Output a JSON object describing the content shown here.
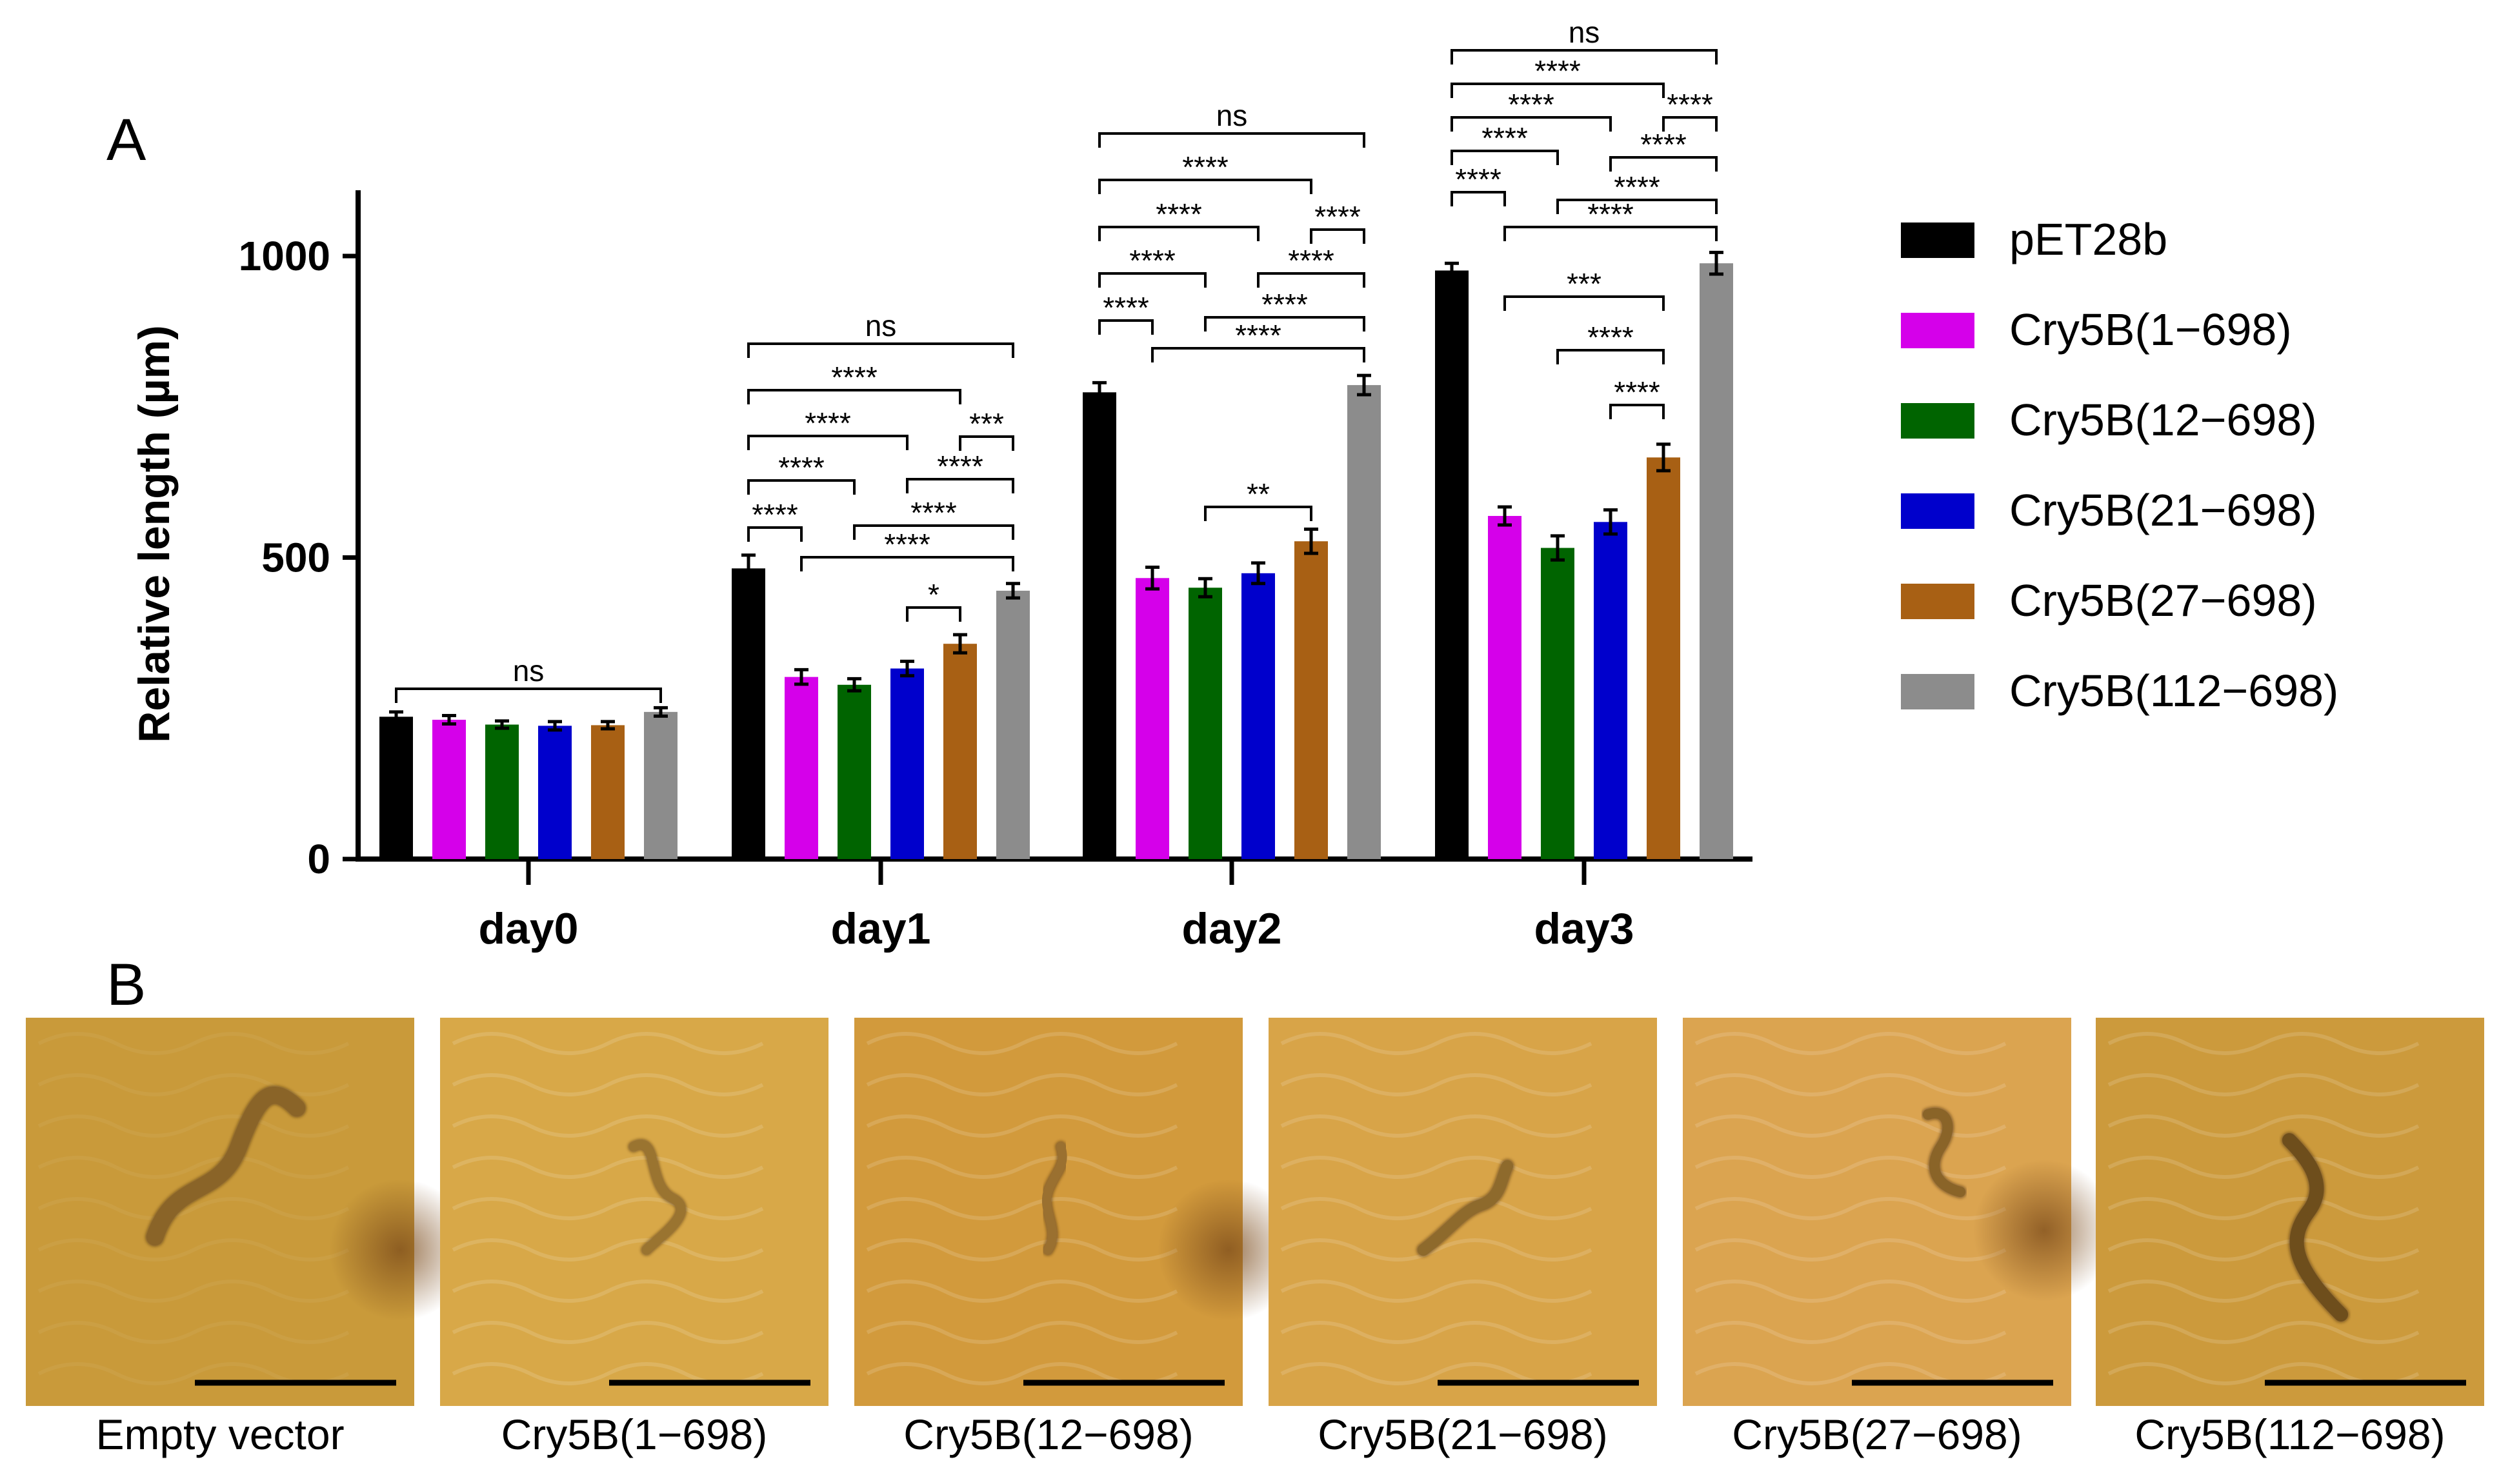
{
  "panel_a_label": "A",
  "panel_b_label": "B",
  "chart_data": {
    "type": "bar",
    "ylabel": "Relative length (µm)",
    "xlabel": "",
    "ylim": [
      0,
      1100
    ],
    "yticks": [
      "0",
      "500",
      "1000"
    ],
    "ytick_values": [
      0,
      500,
      1000
    ],
    "categories": [
      "day0",
      "day1",
      "day2",
      "day3"
    ],
    "legend_position": "right",
    "series": [
      {
        "name": "pET28b",
        "color": "#000000",
        "values": [
          236,
          482,
          774,
          976
        ],
        "errors": [
          8,
          22,
          16,
          12
        ]
      },
      {
        "name": "Cry5B(1−698)",
        "color": "#d500ea",
        "values": [
          231,
          302,
          466,
          569
        ],
        "errors": [
          7,
          12,
          18,
          15
        ]
      },
      {
        "name": "Cry5B(12−698)",
        "color": "#006400",
        "values": [
          223,
          289,
          450,
          516
        ],
        "errors": [
          6,
          10,
          15,
          20
        ]
      },
      {
        "name": "Cry5B(21−698)",
        "color": "#0000cc",
        "values": [
          221,
          316,
          474,
          559
        ],
        "errors": [
          7,
          12,
          17,
          20
        ]
      },
      {
        "name": "Cry5B(27−698)",
        "color": "#a86014",
        "values": [
          222,
          357,
          527,
          666
        ],
        "errors": [
          6,
          15,
          20,
          22
        ]
      },
      {
        "name": "Cry5B(112−698)",
        "color": "#8c8c8c",
        "values": [
          244,
          445,
          786,
          988
        ],
        "errors": [
          7,
          12,
          16,
          18
        ]
      }
    ],
    "annotations": [
      {
        "group": 0,
        "from": 0,
        "to": 5,
        "label": "ns"
      },
      {
        "group": 1,
        "from": 0,
        "to": 5,
        "label": "ns"
      },
      {
        "group": 1,
        "from": 0,
        "to": 4,
        "label": "****"
      },
      {
        "group": 1,
        "from": 0,
        "to": 3,
        "label": "****"
      },
      {
        "group": 1,
        "from": 0,
        "to": 2,
        "label": "****"
      },
      {
        "group": 1,
        "from": 0,
        "to": 1,
        "label": "****"
      },
      {
        "group": 1,
        "from": 4,
        "to": 5,
        "label": "***"
      },
      {
        "group": 1,
        "from": 3,
        "to": 5,
        "label": "****"
      },
      {
        "group": 1,
        "from": 2,
        "to": 5,
        "label": "****"
      },
      {
        "group": 1,
        "from": 1,
        "to": 5,
        "label": "****"
      },
      {
        "group": 1,
        "from": 3,
        "to": 4,
        "label": "*"
      },
      {
        "group": 2,
        "from": 0,
        "to": 5,
        "label": "ns"
      },
      {
        "group": 2,
        "from": 0,
        "to": 4,
        "label": "****"
      },
      {
        "group": 2,
        "from": 0,
        "to": 3,
        "label": "****"
      },
      {
        "group": 2,
        "from": 0,
        "to": 2,
        "label": "****"
      },
      {
        "group": 2,
        "from": 0,
        "to": 1,
        "label": "****"
      },
      {
        "group": 2,
        "from": 4,
        "to": 5,
        "label": "****"
      },
      {
        "group": 2,
        "from": 3,
        "to": 5,
        "label": "****"
      },
      {
        "group": 2,
        "from": 2,
        "to": 5,
        "label": "****"
      },
      {
        "group": 2,
        "from": 1,
        "to": 5,
        "label": "****"
      },
      {
        "group": 2,
        "from": 2,
        "to": 4,
        "label": "**"
      },
      {
        "group": 3,
        "from": 0,
        "to": 5,
        "label": "ns"
      },
      {
        "group": 3,
        "from": 0,
        "to": 4,
        "label": "****"
      },
      {
        "group": 3,
        "from": 0,
        "to": 3,
        "label": "****"
      },
      {
        "group": 3,
        "from": 0,
        "to": 2,
        "label": "****"
      },
      {
        "group": 3,
        "from": 0,
        "to": 1,
        "label": "****"
      },
      {
        "group": 3,
        "from": 4,
        "to": 5,
        "label": "****"
      },
      {
        "group": 3,
        "from": 3,
        "to": 5,
        "label": "****"
      },
      {
        "group": 3,
        "from": 2,
        "to": 5,
        "label": "****"
      },
      {
        "group": 3,
        "from": 1,
        "to": 5,
        "label": "****"
      },
      {
        "group": 3,
        "from": 1,
        "to": 4,
        "label": "***"
      },
      {
        "group": 3,
        "from": 2,
        "to": 4,
        "label": "****"
      },
      {
        "group": 3,
        "from": 3,
        "to": 4,
        "label": "****"
      }
    ]
  },
  "images": [
    {
      "caption": "Empty vector",
      "bg": "#c99a3a",
      "worm_color": "#8a6428"
    },
    {
      "caption": "Cry5B(1−698)",
      "bg": "#d8a848",
      "worm_color": "#9a7430"
    },
    {
      "caption": "Cry5B(12−698)",
      "bg": "#d29a3c",
      "worm_color": "#9a7030"
    },
    {
      "caption": "Cry5B(21−698)",
      "bg": "#d8a448",
      "worm_color": "#8e6a2c"
    },
    {
      "caption": "Cry5B(27−698)",
      "bg": "#dba450",
      "worm_color": "#8a6428"
    },
    {
      "caption": "Cry5B(112−698)",
      "bg": "#cc9a3c",
      "worm_color": "#6e4e1c"
    }
  ]
}
